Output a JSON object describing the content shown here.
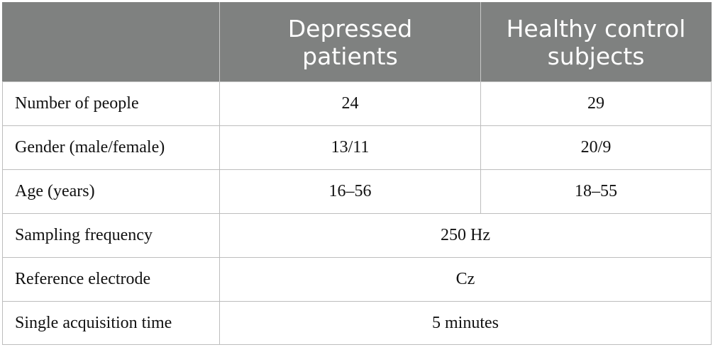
{
  "table": {
    "header": {
      "corner": "",
      "col1_line1": "Depressed",
      "col1_line2": "patients",
      "col2_line1": "Healthy control",
      "col2_line2": "subjects"
    },
    "rows": [
      {
        "label": "Number of people",
        "depressed": "24",
        "healthy": "29"
      },
      {
        "label": "Gender (male/female)",
        "depressed": "13/11",
        "healthy": "20/9"
      },
      {
        "label": "Age (years)",
        "depressed": "16–56",
        "healthy": "18–55"
      },
      {
        "label": "Sampling frequency",
        "shared": "250 Hz"
      },
      {
        "label": "Reference electrode",
        "shared": "Cz"
      },
      {
        "label": "Single acquisition time",
        "shared": "5 minutes"
      }
    ]
  },
  "colors": {
    "header_bg": "#7f8180",
    "header_text": "#ffffff",
    "grid_line": "#bdbdbd"
  }
}
